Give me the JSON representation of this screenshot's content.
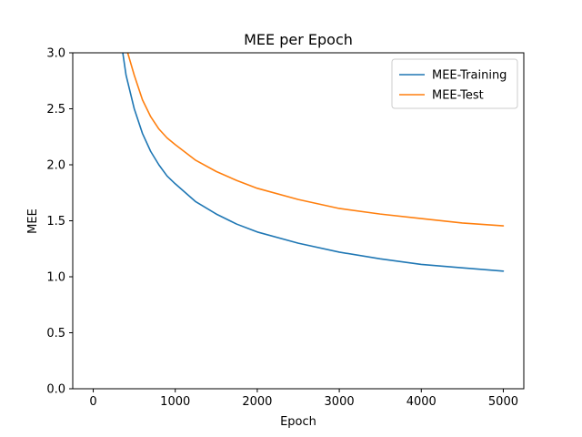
{
  "chart_data": {
    "type": "line",
    "title": "MEE per Epoch",
    "xlabel": "Epoch",
    "ylabel": "MEE",
    "xlim": [
      -250,
      5250
    ],
    "ylim": [
      0.0,
      3.0
    ],
    "xticks": [
      0,
      1000,
      2000,
      3000,
      4000,
      5000
    ],
    "xtick_labels": [
      "0",
      "1000",
      "2000",
      "3000",
      "4000",
      "5000"
    ],
    "yticks": [
      0.0,
      0.5,
      1.0,
      1.5,
      2.0,
      2.5,
      3.0
    ],
    "ytick_labels": [
      "0.0",
      "0.5",
      "1.0",
      "1.5",
      "2.0",
      "2.5",
      "3.0"
    ],
    "grid": false,
    "legend_position": "top-right",
    "series": [
      {
        "name": "MEE-Training",
        "color": "#1f77b4",
        "x": [
          360,
          400,
          500,
          600,
          700,
          800,
          900,
          1000,
          1250,
          1500,
          1750,
          2000,
          2500,
          3000,
          3500,
          4000,
          4500,
          5000
        ],
        "y": [
          3.0,
          2.8,
          2.5,
          2.28,
          2.12,
          2.0,
          1.9,
          1.83,
          1.67,
          1.56,
          1.47,
          1.4,
          1.3,
          1.22,
          1.16,
          1.11,
          1.08,
          1.05
        ]
      },
      {
        "name": "MEE-Test",
        "color": "#ff7f0e",
        "x": [
          420,
          500,
          600,
          700,
          800,
          900,
          1000,
          1250,
          1500,
          1750,
          2000,
          2500,
          3000,
          3500,
          4000,
          4500,
          5000
        ],
        "y": [
          3.0,
          2.8,
          2.58,
          2.43,
          2.32,
          2.24,
          2.18,
          2.04,
          1.94,
          1.86,
          1.79,
          1.69,
          1.61,
          1.56,
          1.52,
          1.48,
          1.455
        ]
      }
    ]
  }
}
